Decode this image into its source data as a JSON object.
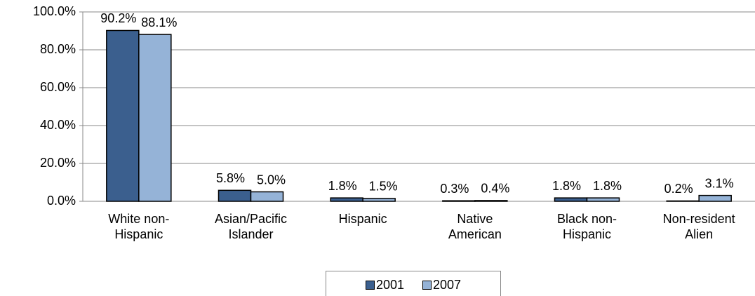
{
  "chart_data": {
    "type": "bar",
    "categories": [
      "White non-Hispanic",
      "Asian/Pacific Islander",
      "Hispanic",
      "Native American",
      "Black non-Hispanic",
      "Non-resident Alien"
    ],
    "series": [
      {
        "name": "2001",
        "color": "#3b5f8e",
        "values": [
          90.2,
          5.8,
          1.8,
          0.3,
          1.8,
          0.2
        ],
        "value_labels": [
          "90.2%",
          "5.8%",
          "1.8%",
          "0.3%",
          "1.8%",
          "0.2%"
        ]
      },
      {
        "name": "2007",
        "color": "#95b3d7",
        "values": [
          88.1,
          5.0,
          1.5,
          0.4,
          1.8,
          3.1
        ],
        "value_labels": [
          "88.1%",
          "5.0%",
          "1.5%",
          "0.4%",
          "1.8%",
          "3.1%"
        ]
      }
    ],
    "ylim": [
      0,
      100
    ],
    "yticks": [
      {
        "value": 0,
        "label": "0.0%"
      },
      {
        "value": 20,
        "label": "20.0%"
      },
      {
        "value": 40,
        "label": "40.0%"
      },
      {
        "value": 60,
        "label": "60.0%"
      },
      {
        "value": 80,
        "label": "80.0%"
      },
      {
        "value": 100,
        "label": "100.0%"
      }
    ],
    "grid": true,
    "legend": "bottom"
  }
}
